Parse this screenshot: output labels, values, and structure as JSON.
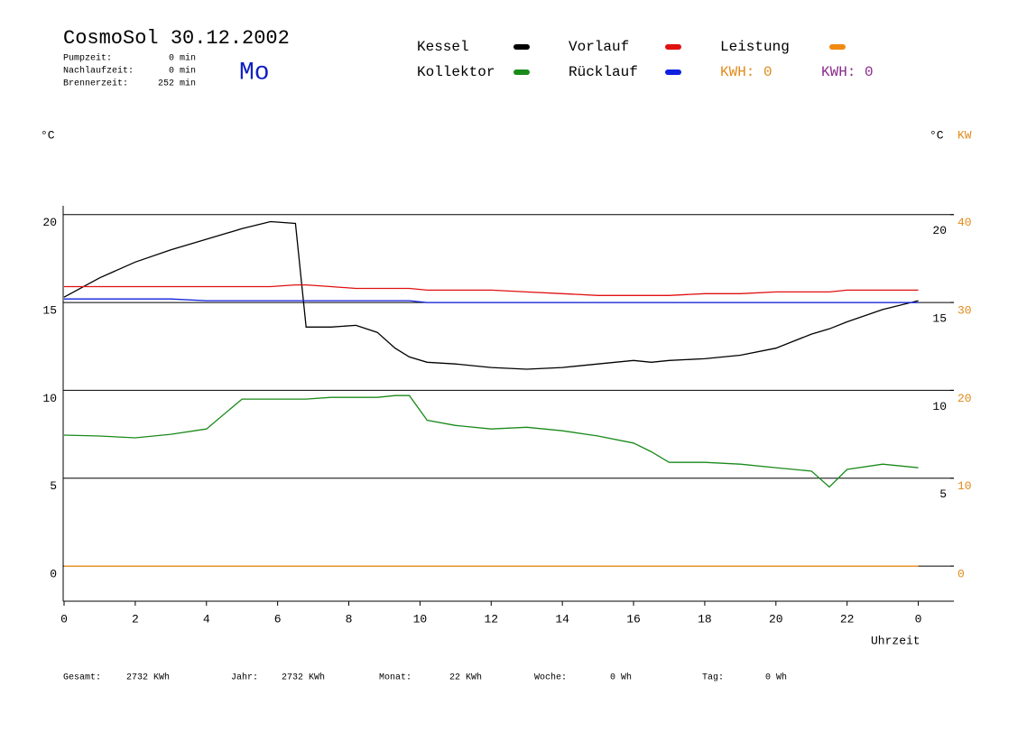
{
  "header": {
    "title": "CosmoSol 30.12.2002",
    "day": "Mo",
    "stats": [
      {
        "label": "Pumpzeit:",
        "value": "0 min"
      },
      {
        "label": "Nachlaufzeit:",
        "value": "0 min"
      },
      {
        "label": "Brennerzeit:",
        "value": "252 min"
      }
    ],
    "kwh": [
      {
        "text": "KWH: 0",
        "color": "#e08a1a"
      },
      {
        "text": "KWH: 0",
        "color": "#8a2a8a"
      }
    ]
  },
  "footer": [
    {
      "label": "Gesamt:",
      "value": "2732 KWh"
    },
    {
      "label": "Jahr:",
      "value": "2732 KWh"
    },
    {
      "label": "Monat:",
      "value": "22 KWh"
    },
    {
      "label": "Woche:",
      "value": "0 Wh"
    },
    {
      "label": "Tag:",
      "value": "0 Wh"
    }
  ],
  "chart_data": {
    "type": "line",
    "ylabel": "°C",
    "y2label": "°C",
    "y2unit": "KW",
    "xlabel": "Uhrzeit",
    "x": [
      0,
      1,
      2,
      3,
      4,
      5,
      5.8,
      6.5,
      6.8,
      7.5,
      8.2,
      8.8,
      9.3,
      9.7,
      10.2,
      11,
      12,
      13,
      14,
      15,
      16,
      16.5,
      17,
      18,
      19,
      20,
      21,
      21.5,
      22,
      23,
      24
    ],
    "series": [
      {
        "name": "Kessel",
        "color": "#000000",
        "values": [
          15.3,
          16.4,
          17.3,
          18.0,
          18.6,
          19.2,
          19.6,
          19.5,
          13.6,
          13.6,
          13.7,
          13.3,
          12.4,
          11.9,
          11.6,
          11.5,
          11.3,
          11.2,
          11.3,
          11.5,
          11.7,
          11.6,
          11.7,
          11.8,
          12.0,
          12.4,
          13.2,
          13.5,
          13.9,
          14.6,
          15.1
        ]
      },
      {
        "name": "Kollektor",
        "color": "#1a8a1a",
        "values": [
          7.45,
          7.4,
          7.3,
          7.5,
          7.8,
          9.5,
          9.5,
          9.5,
          9.5,
          9.6,
          9.6,
          9.6,
          9.7,
          9.7,
          8.3,
          8.0,
          7.8,
          7.9,
          7.7,
          7.4,
          7.0,
          6.5,
          5.9,
          5.9,
          5.8,
          5.6,
          5.4,
          4.5,
          5.5,
          5.8,
          5.6
        ]
      },
      {
        "name": "Vorlauf",
        "color": "#e01010",
        "values": [
          15.9,
          15.9,
          15.9,
          15.9,
          15.9,
          15.9,
          15.9,
          16.0,
          16.0,
          15.9,
          15.8,
          15.8,
          15.8,
          15.8,
          15.7,
          15.7,
          15.7,
          15.6,
          15.5,
          15.4,
          15.4,
          15.4,
          15.4,
          15.5,
          15.5,
          15.6,
          15.6,
          15.6,
          15.7,
          15.7,
          15.7
        ]
      },
      {
        "name": "Rücklauf",
        "color": "#1020e0",
        "values": [
          15.2,
          15.2,
          15.2,
          15.2,
          15.1,
          15.1,
          15.1,
          15.1,
          15.1,
          15.1,
          15.1,
          15.1,
          15.1,
          15.1,
          15.0,
          15.0,
          15.0,
          15.0,
          15.0,
          15.0,
          15.0,
          15.0,
          15.0,
          15.0,
          15.0,
          15.0,
          15.0,
          15.0,
          15.0,
          15.0,
          15.0
        ]
      },
      {
        "name": "Leistung",
        "color": "#f08a10",
        "axis": "y2",
        "values": [
          0,
          0,
          0,
          0,
          0,
          0,
          0,
          0,
          0,
          0,
          0,
          0,
          0,
          0,
          0,
          0,
          0,
          0,
          0,
          0,
          0,
          0,
          0,
          0,
          0,
          0,
          0,
          0,
          0,
          0,
          0
        ]
      }
    ],
    "xlim": [
      0,
      25
    ],
    "xticks": [
      0,
      2,
      4,
      6,
      8,
      10,
      12,
      14,
      16,
      18,
      20,
      22,
      {
        "value": 24,
        "label": "0"
      }
    ],
    "ylim": [
      -2,
      20.5
    ],
    "yticks": [
      0,
      5,
      10,
      15,
      20
    ],
    "y_right_ticks": [
      5,
      10,
      15,
      20
    ],
    "y2lim": [
      -4,
      41
    ],
    "y2ticks": [
      0,
      10,
      20,
      30,
      40
    ],
    "y2color": "#e08a1a",
    "grid": true
  }
}
